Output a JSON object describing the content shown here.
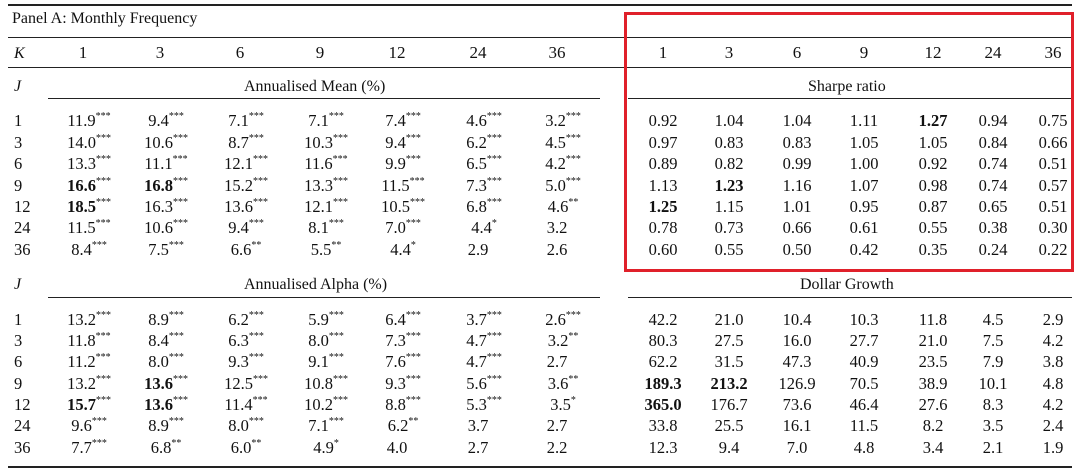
{
  "panel_title": "Panel A: Monthly Frequency",
  "k_label": "K",
  "j_label": "J",
  "k_values": [
    "1",
    "3",
    "6",
    "9",
    "12",
    "24",
    "36"
  ],
  "row_labels": [
    "1",
    "3",
    "6",
    "9",
    "12",
    "24",
    "36"
  ],
  "sections": {
    "mean": "Annualised Mean (%)",
    "sharpe": "Sharpe ratio",
    "alpha": "Annualised Alpha (%)",
    "dollar": "Dollar Growth"
  },
  "mean": [
    [
      {
        "v": "11.9",
        "s": "***"
      },
      {
        "v": "9.4",
        "s": "***"
      },
      {
        "v": "7.1",
        "s": "***"
      },
      {
        "v": "7.1",
        "s": "***"
      },
      {
        "v": "7.4",
        "s": "***"
      },
      {
        "v": "4.6",
        "s": "***"
      },
      {
        "v": "3.2",
        "s": "***"
      }
    ],
    [
      {
        "v": "14.0",
        "s": "***"
      },
      {
        "v": "10.6",
        "s": "***"
      },
      {
        "v": "8.7",
        "s": "***"
      },
      {
        "v": "10.3",
        "s": "***"
      },
      {
        "v": "9.4",
        "s": "***"
      },
      {
        "v": "6.2",
        "s": "***"
      },
      {
        "v": "4.5",
        "s": "***"
      }
    ],
    [
      {
        "v": "13.3",
        "s": "***"
      },
      {
        "v": "11.1",
        "s": "***"
      },
      {
        "v": "12.1",
        "s": "***"
      },
      {
        "v": "11.6",
        "s": "***"
      },
      {
        "v": "9.9",
        "s": "***"
      },
      {
        "v": "6.5",
        "s": "***"
      },
      {
        "v": "4.2",
        "s": "***"
      }
    ],
    [
      {
        "v": "16.6",
        "s": "***",
        "b": true
      },
      {
        "v": "16.8",
        "s": "***",
        "b": true
      },
      {
        "v": "15.2",
        "s": "***"
      },
      {
        "v": "13.3",
        "s": "***"
      },
      {
        "v": "11.5",
        "s": "***"
      },
      {
        "v": "7.3",
        "s": "***"
      },
      {
        "v": "5.0",
        "s": "***"
      }
    ],
    [
      {
        "v": "18.5",
        "s": "***",
        "b": true
      },
      {
        "v": "16.3",
        "s": "***"
      },
      {
        "v": "13.6",
        "s": "***"
      },
      {
        "v": "12.1",
        "s": "***"
      },
      {
        "v": "10.5",
        "s": "***"
      },
      {
        "v": "6.8",
        "s": "***"
      },
      {
        "v": "4.6",
        "s": "**"
      }
    ],
    [
      {
        "v": "11.5",
        "s": "***"
      },
      {
        "v": "10.6",
        "s": "***"
      },
      {
        "v": "9.4",
        "s": "***"
      },
      {
        "v": "8.1",
        "s": "***"
      },
      {
        "v": "7.0",
        "s": "***"
      },
      {
        "v": "4.4",
        "s": "*"
      },
      {
        "v": "3.2",
        "s": ""
      }
    ],
    [
      {
        "v": "8.4",
        "s": "***"
      },
      {
        "v": "7.5",
        "s": "***"
      },
      {
        "v": "6.6",
        "s": "**"
      },
      {
        "v": "5.5",
        "s": "**"
      },
      {
        "v": "4.4",
        "s": "*"
      },
      {
        "v": "2.9",
        "s": ""
      },
      {
        "v": "2.6",
        "s": ""
      }
    ]
  ],
  "sharpe": [
    [
      {
        "v": "0.92"
      },
      {
        "v": "1.04"
      },
      {
        "v": "1.04"
      },
      {
        "v": "1.11"
      },
      {
        "v": "1.27",
        "b": true
      },
      {
        "v": "0.94"
      },
      {
        "v": "0.75"
      }
    ],
    [
      {
        "v": "0.97"
      },
      {
        "v": "0.83"
      },
      {
        "v": "0.83"
      },
      {
        "v": "1.05"
      },
      {
        "v": "1.05"
      },
      {
        "v": "0.84"
      },
      {
        "v": "0.66"
      }
    ],
    [
      {
        "v": "0.89"
      },
      {
        "v": "0.82"
      },
      {
        "v": "0.99"
      },
      {
        "v": "1.00"
      },
      {
        "v": "0.92"
      },
      {
        "v": "0.74"
      },
      {
        "v": "0.51"
      }
    ],
    [
      {
        "v": "1.13"
      },
      {
        "v": "1.23",
        "b": true
      },
      {
        "v": "1.16"
      },
      {
        "v": "1.07"
      },
      {
        "v": "0.98"
      },
      {
        "v": "0.74"
      },
      {
        "v": "0.57"
      }
    ],
    [
      {
        "v": "1.25",
        "b": true
      },
      {
        "v": "1.15"
      },
      {
        "v": "1.01"
      },
      {
        "v": "0.95"
      },
      {
        "v": "0.87"
      },
      {
        "v": "0.65"
      },
      {
        "v": "0.51"
      }
    ],
    [
      {
        "v": "0.78"
      },
      {
        "v": "0.73"
      },
      {
        "v": "0.66"
      },
      {
        "v": "0.61"
      },
      {
        "v": "0.55"
      },
      {
        "v": "0.38"
      },
      {
        "v": "0.30"
      }
    ],
    [
      {
        "v": "0.60"
      },
      {
        "v": "0.55"
      },
      {
        "v": "0.50"
      },
      {
        "v": "0.42"
      },
      {
        "v": "0.35"
      },
      {
        "v": "0.24"
      },
      {
        "v": "0.22"
      }
    ]
  ],
  "alpha": [
    [
      {
        "v": "13.2",
        "s": "***"
      },
      {
        "v": "8.9",
        "s": "***"
      },
      {
        "v": "6.2",
        "s": "***"
      },
      {
        "v": "5.9",
        "s": "***"
      },
      {
        "v": "6.4",
        "s": "***"
      },
      {
        "v": "3.7",
        "s": "***"
      },
      {
        "v": "2.6",
        "s": "***"
      }
    ],
    [
      {
        "v": "11.8",
        "s": "***"
      },
      {
        "v": "8.4",
        "s": "***"
      },
      {
        "v": "6.3",
        "s": "***"
      },
      {
        "v": "8.0",
        "s": "***"
      },
      {
        "v": "7.3",
        "s": "***"
      },
      {
        "v": "4.7",
        "s": "***"
      },
      {
        "v": "3.2",
        "s": "**"
      }
    ],
    [
      {
        "v": "11.2",
        "s": "***"
      },
      {
        "v": "8.0",
        "s": "***"
      },
      {
        "v": "9.3",
        "s": "***"
      },
      {
        "v": "9.1",
        "s": "***"
      },
      {
        "v": "7.6",
        "s": "***"
      },
      {
        "v": "4.7",
        "s": "***"
      },
      {
        "v": "2.7",
        "s": ""
      }
    ],
    [
      {
        "v": "13.2",
        "s": "***"
      },
      {
        "v": "13.6",
        "s": "***",
        "b": true
      },
      {
        "v": "12.5",
        "s": "***"
      },
      {
        "v": "10.8",
        "s": "***"
      },
      {
        "v": "9.3",
        "s": "***"
      },
      {
        "v": "5.6",
        "s": "***"
      },
      {
        "v": "3.6",
        "s": "**"
      }
    ],
    [
      {
        "v": "15.7",
        "s": "***",
        "b": true
      },
      {
        "v": "13.6",
        "s": "***",
        "b": true
      },
      {
        "v": "11.4",
        "s": "***"
      },
      {
        "v": "10.2",
        "s": "***"
      },
      {
        "v": "8.8",
        "s": "***"
      },
      {
        "v": "5.3",
        "s": "***"
      },
      {
        "v": "3.5",
        "s": "*"
      }
    ],
    [
      {
        "v": "9.6",
        "s": "***"
      },
      {
        "v": "8.9",
        "s": "***"
      },
      {
        "v": "8.0",
        "s": "***"
      },
      {
        "v": "7.1",
        "s": "***"
      },
      {
        "v": "6.2",
        "s": "**"
      },
      {
        "v": "3.7",
        "s": ""
      },
      {
        "v": "2.7",
        "s": ""
      }
    ],
    [
      {
        "v": "7.7",
        "s": "***"
      },
      {
        "v": "6.8",
        "s": "**"
      },
      {
        "v": "6.0",
        "s": "**"
      },
      {
        "v": "4.9",
        "s": "*"
      },
      {
        "v": "4.0",
        "s": ""
      },
      {
        "v": "2.7",
        "s": ""
      },
      {
        "v": "2.2",
        "s": ""
      }
    ]
  ],
  "dollar": [
    [
      {
        "v": "42.2"
      },
      {
        "v": "21.0"
      },
      {
        "v": "10.4"
      },
      {
        "v": "10.3"
      },
      {
        "v": "11.8"
      },
      {
        "v": "4.5"
      },
      {
        "v": "2.9"
      }
    ],
    [
      {
        "v": "80.3"
      },
      {
        "v": "27.5"
      },
      {
        "v": "16.0"
      },
      {
        "v": "27.7"
      },
      {
        "v": "21.0"
      },
      {
        "v": "7.5"
      },
      {
        "v": "4.2"
      }
    ],
    [
      {
        "v": "62.2"
      },
      {
        "v": "31.5"
      },
      {
        "v": "47.3"
      },
      {
        "v": "40.9"
      },
      {
        "v": "23.5"
      },
      {
        "v": "7.9"
      },
      {
        "v": "3.8"
      }
    ],
    [
      {
        "v": "189.3",
        "b": true
      },
      {
        "v": "213.2",
        "b": true
      },
      {
        "v": "126.9"
      },
      {
        "v": "70.5"
      },
      {
        "v": "38.9"
      },
      {
        "v": "10.1"
      },
      {
        "v": "4.8"
      }
    ],
    [
      {
        "v": "365.0",
        "b": true
      },
      {
        "v": "176.7"
      },
      {
        "v": "73.6"
      },
      {
        "v": "46.4"
      },
      {
        "v": "27.6"
      },
      {
        "v": "8.3"
      },
      {
        "v": "4.2"
      }
    ],
    [
      {
        "v": "33.8"
      },
      {
        "v": "25.5"
      },
      {
        "v": "16.1"
      },
      {
        "v": "11.5"
      },
      {
        "v": "8.2"
      },
      {
        "v": "3.5"
      },
      {
        "v": "2.4"
      }
    ],
    [
      {
        "v": "12.3"
      },
      {
        "v": "9.4"
      },
      {
        "v": "7.0"
      },
      {
        "v": "4.8"
      },
      {
        "v": "3.4"
      },
      {
        "v": "2.1"
      },
      {
        "v": "1.9"
      }
    ]
  ],
  "highlight_color": "#e0202a"
}
